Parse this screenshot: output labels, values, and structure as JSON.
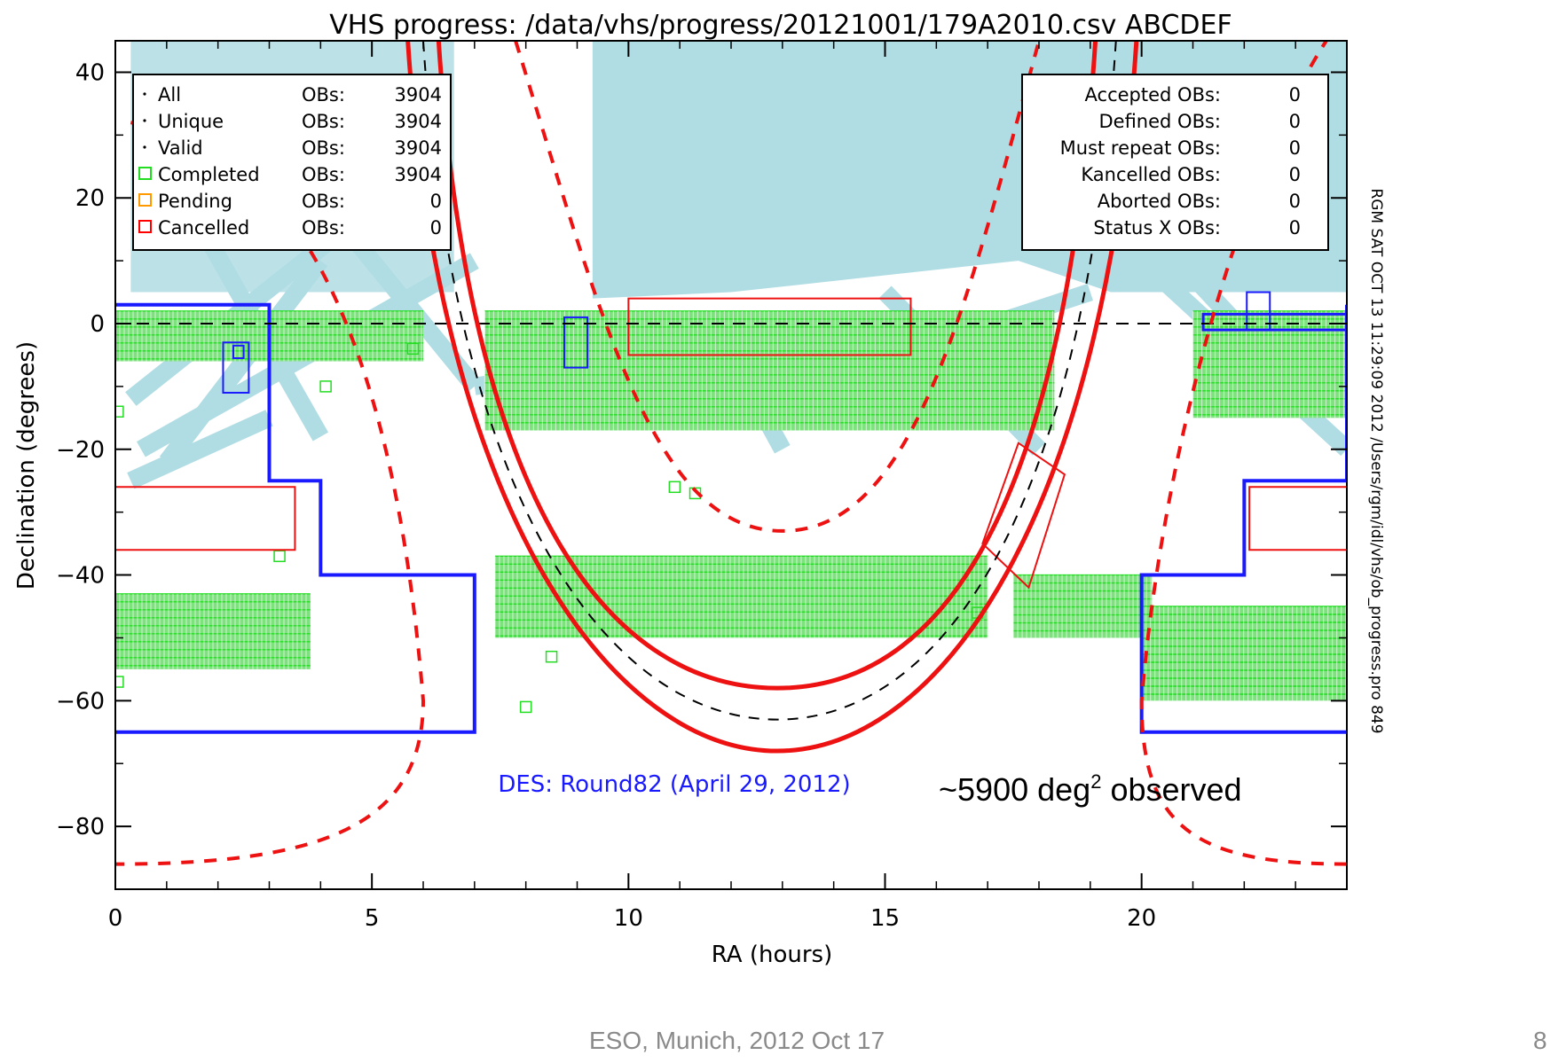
{
  "chart_data": {
    "type": "scatter",
    "title": "VHS progress: /data/vhs/progress/20121001/179A2010.csv  ABCDEF",
    "xlabel": "RA (hours)",
    "ylabel": "Declination (degrees)",
    "xlim": [
      0,
      24
    ],
    "ylim": [
      -90,
      45
    ],
    "xticks": [
      0,
      5,
      10,
      15,
      20
    ],
    "yticks": [
      40,
      20,
      0,
      -20,
      -40,
      -60,
      -80
    ],
    "xtick_labels": [
      "0",
      "5",
      "10",
      "15",
      "20"
    ],
    "ytick_labels": [
      "40",
      "20",
      "0",
      "−20",
      "−40",
      "−60",
      "−80"
    ],
    "legend_left": [
      {
        "marker": "dot",
        "color": "#000000",
        "label": "All",
        "unit": "OBs:",
        "value": "3904"
      },
      {
        "marker": "dot",
        "color": "#000000",
        "label": "Unique",
        "unit": "OBs:",
        "value": "3904"
      },
      {
        "marker": "dot",
        "color": "#000000",
        "label": "Valid",
        "unit": "OBs:",
        "value": "3904"
      },
      {
        "marker": "square",
        "color": "#22dd22",
        "label": "Completed",
        "unit": "OBs:",
        "value": "3904"
      },
      {
        "marker": "square",
        "color": "#ff9900",
        "label": "Pending",
        "unit": "OBs:",
        "value": "0"
      },
      {
        "marker": "square",
        "color": "#ff0000",
        "label": "Cancelled",
        "unit": "OBs:",
        "value": "0"
      }
    ],
    "legend_right": [
      {
        "label": "Accepted OBs:",
        "value": "0"
      },
      {
        "label": "Defined OBs:",
        "value": "0"
      },
      {
        "label": "Must repeat OBs:",
        "value": "0"
      },
      {
        "label": "Kancelled OBs:",
        "value": "0"
      },
      {
        "label": "Aborted OBs:",
        "value": "0"
      },
      {
        "label": "Status X OBs:",
        "value": "0"
      }
    ],
    "annotations": {
      "des_footprint": "DES: Round82 (April 29, 2012)",
      "observed_prefix": "~5900 deg",
      "observed_sup": "2",
      "observed_suffix": " observed"
    },
    "side_text": "RGM SAT OCT 13 11:29:09 2012 /Users/rgm/idl/vhs/ob_progress.pro 849",
    "colors": {
      "completed": "#22dd22",
      "des": "#1a1aff",
      "galactic": "#ee1111",
      "sky_coverage": "#b0dde4"
    },
    "completed_regions": [
      {
        "ra": [
          0,
          6
        ],
        "dec": [
          -6,
          2
        ]
      },
      {
        "ra": [
          7.2,
          18.3
        ],
        "dec": [
          -17,
          2
        ]
      },
      {
        "ra": [
          7.4,
          17
        ],
        "dec": [
          -50,
          -37
        ]
      },
      {
        "ra": [
          17.5,
          20.2
        ],
        "dec": [
          -50,
          -40
        ]
      },
      {
        "ra": [
          21,
          24
        ],
        "dec": [
          -15,
          2
        ]
      },
      {
        "ra": [
          0,
          3.8
        ],
        "dec": [
          -55,
          -43
        ]
      },
      {
        "ra": [
          20,
          24
        ],
        "dec": [
          -60,
          -45
        ]
      }
    ],
    "des_footprint_outline": [
      [
        0,
        3
      ],
      [
        3,
        3
      ],
      [
        3,
        -25
      ],
      [
        4,
        -25
      ],
      [
        4,
        -40
      ],
      [
        7,
        -40
      ],
      [
        7,
        -65
      ],
      [
        0,
        -65
      ]
    ],
    "des_footprint_outline_2": [
      [
        24,
        3
      ],
      [
        24,
        -25
      ],
      [
        22,
        -25
      ],
      [
        22,
        -40
      ],
      [
        20,
        -40
      ],
      [
        20,
        -65
      ],
      [
        24,
        -65
      ]
    ],
    "galactic_plane_center": [
      [
        6.6,
        45
      ],
      [
        8,
        -18
      ],
      [
        10,
        -45
      ],
      [
        12,
        -56
      ],
      [
        13,
        -58
      ],
      [
        14,
        -56
      ],
      [
        16,
        -45
      ],
      [
        18,
        -18
      ],
      [
        19.4,
        45
      ]
    ],
    "ecliptic": [
      [
        6.0,
        45
      ],
      [
        6.6,
        0
      ],
      [
        7.5,
        -30
      ],
      [
        9,
        -50
      ],
      [
        11,
        -62
      ],
      [
        13,
        -64
      ],
      [
        15,
        -62
      ],
      [
        17,
        -50
      ],
      [
        18.5,
        -30
      ],
      [
        19.3,
        0
      ],
      [
        20,
        45
      ]
    ]
  },
  "footer": {
    "venue": "ESO, Munich, 2012 Oct 17",
    "slide_number": "8"
  }
}
